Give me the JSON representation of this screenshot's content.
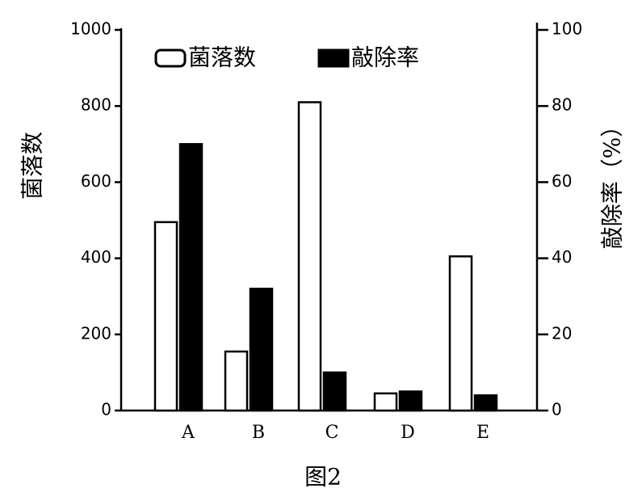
{
  "chart_data": {
    "type": "bar",
    "caption": "图2",
    "categories": [
      "A",
      "B",
      "C",
      "D",
      "E"
    ],
    "series": [
      {
        "name": "菌落数",
        "color": "#ffffff",
        "values": [
          495,
          155,
          810,
          45,
          405
        ]
      },
      {
        "name": "敲除率",
        "color": "#000000",
        "axis": "y2",
        "values": [
          70,
          32,
          10,
          5,
          4
        ]
      }
    ],
    "ylabel": "菌落数",
    "y2label": "敲除率（%）",
    "ylim": [
      0,
      1000
    ],
    "yticks": [
      0,
      200,
      400,
      600,
      800,
      1000
    ],
    "y2lim": [
      0,
      100
    ],
    "y2ticks": [
      0,
      20,
      40,
      60,
      80,
      100
    ]
  }
}
